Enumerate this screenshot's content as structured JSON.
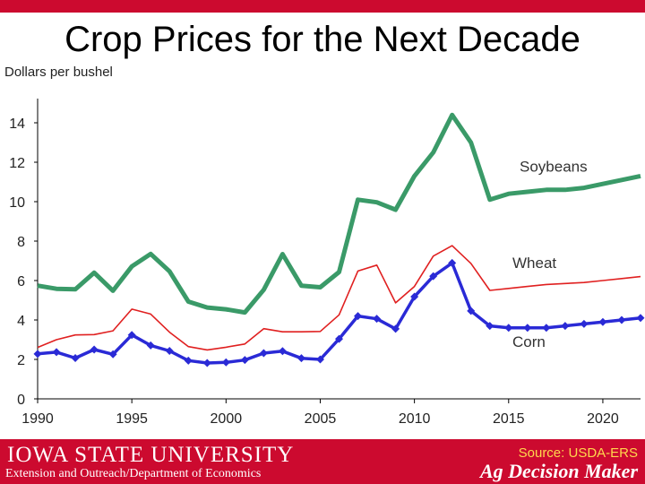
{
  "slide": {
    "title": "Crop Prices for the Next Decade",
    "source": "Source: USDA-ERS",
    "university": "IOWA STATE UNIVERSITY",
    "department": "Extension and Outreach/Department of Economics",
    "brand": "Ag Decision Maker"
  },
  "colors": {
    "soybeans": "#3a9a68",
    "wheat": "#e02020",
    "corn": "#2a2ad6",
    "brand_red": "#cc0a2f"
  },
  "chart_data": {
    "type": "line",
    "ylabel": "Dollars per bushel",
    "xlabel": "",
    "xlim": [
      1990,
      2022
    ],
    "ylim": [
      0,
      15
    ],
    "xticks": [
      1990,
      1995,
      2000,
      2005,
      2010,
      2015,
      2020
    ],
    "yticks": [
      0,
      2,
      4,
      6,
      8,
      10,
      12,
      14
    ],
    "x": [
      1990,
      1991,
      1992,
      1993,
      1994,
      1995,
      1996,
      1997,
      1998,
      1999,
      2000,
      2001,
      2002,
      2003,
      2004,
      2005,
      2006,
      2007,
      2008,
      2009,
      2010,
      2011,
      2012,
      2013,
      2014,
      2015,
      2016,
      2017,
      2018,
      2019,
      2020,
      2021,
      2022
    ],
    "series": [
      {
        "name": "Soybeans",
        "color": "#3a9a68",
        "values": [
          5.74,
          5.58,
          5.56,
          6.4,
          5.48,
          6.72,
          7.35,
          6.47,
          4.93,
          4.63,
          4.54,
          4.38,
          5.53,
          7.34,
          5.74,
          5.66,
          6.43,
          10.1,
          9.97,
          9.59,
          11.3,
          12.5,
          14.4,
          13.0,
          10.1,
          10.4,
          10.5,
          10.6,
          10.6,
          10.7,
          10.9,
          11.1,
          11.3
        ]
      },
      {
        "name": "Wheat",
        "color": "#e02020",
        "values": [
          2.61,
          3.0,
          3.24,
          3.26,
          3.45,
          4.55,
          4.3,
          3.38,
          2.65,
          2.48,
          2.62,
          2.78,
          3.56,
          3.4,
          3.4,
          3.42,
          4.26,
          6.48,
          6.78,
          4.87,
          5.7,
          7.24,
          7.77,
          6.87,
          5.5,
          5.6,
          5.7,
          5.8,
          5.85,
          5.9,
          6.0,
          6.1,
          6.2
        ]
      },
      {
        "name": "Corn",
        "color": "#2a2ad6",
        "values": [
          2.28,
          2.37,
          2.07,
          2.5,
          2.26,
          3.24,
          2.71,
          2.43,
          1.94,
          1.82,
          1.85,
          1.97,
          2.32,
          2.42,
          2.06,
          2.0,
          3.04,
          4.2,
          4.06,
          3.55,
          5.18,
          6.22,
          6.89,
          4.46,
          3.7,
          3.6,
          3.6,
          3.6,
          3.7,
          3.8,
          3.9,
          4.0,
          4.1
        ]
      }
    ],
    "annotations": [
      "Soybeans",
      "Wheat",
      "Corn"
    ],
    "grid": false,
    "legend": "inline labels"
  }
}
